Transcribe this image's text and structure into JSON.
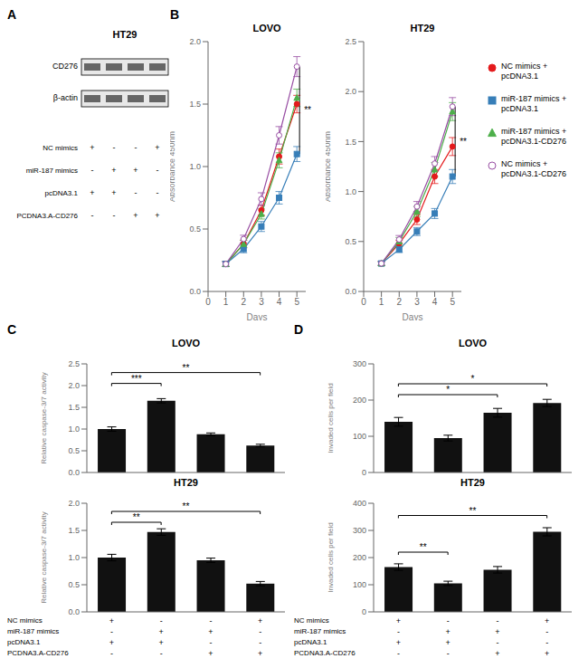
{
  "chart_data": [
    {
      "type": "blot",
      "panel_label": "A",
      "title": "HT29",
      "row_labels": [
        "CD276",
        "β-actin"
      ]
    },
    {
      "type": "line",
      "panel_label": "B",
      "title": "LOVO",
      "xlabel": "Days",
      "ylabel": "Absorbance 450nm",
      "x": [
        1,
        2,
        3,
        4,
        5
      ],
      "xlim": [
        0,
        5.5
      ],
      "xticks": [
        0,
        1,
        2,
        3,
        4,
        5
      ],
      "ylim": [
        0.0,
        2.0
      ],
      "yticks": [
        {
          "value": 0,
          "label": "0.0"
        },
        0.5,
        {
          "value": 1,
          "label": "1.0"
        },
        1.5,
        {
          "value": 2,
          "label": "2.0"
        }
      ],
      "series": [
        {
          "name": "NC mimics + pcDNA3.1",
          "color": "#e41a1c",
          "marker": "circle",
          "values": [
            0.22,
            0.38,
            0.65,
            1.08,
            1.5
          ],
          "errors": [
            0.02,
            0.03,
            0.04,
            0.06,
            0.07
          ]
        },
        {
          "name": "miR-187 mimics + pcDNA3.1",
          "color": "#377eb8",
          "marker": "square",
          "values": [
            0.22,
            0.34,
            0.52,
            0.75,
            1.1
          ],
          "errors": [
            0.02,
            0.03,
            0.04,
            0.05,
            0.06
          ]
        },
        {
          "name": "miR-187 mimics + pcDNA3.1-CD276",
          "color": "#4daf4a",
          "marker": "triangle",
          "values": [
            0.22,
            0.38,
            0.62,
            1.05,
            1.55
          ],
          "errors": [
            0.02,
            0.03,
            0.04,
            0.06,
            0.07
          ]
        },
        {
          "name": "NC mimics + pcDNA3.1-CD276",
          "color": "#984ea3",
          "marker": "circle-open",
          "values": [
            0.22,
            0.42,
            0.74,
            1.25,
            1.8
          ],
          "errors": [
            0.02,
            0.03,
            0.05,
            0.07,
            0.08
          ]
        }
      ],
      "annotations": [
        {
          "text": "**",
          "x": 5.15,
          "y1": 1.1,
          "y2": 1.8
        }
      ]
    },
    {
      "type": "line",
      "title": "HT29",
      "xlabel": "Days",
      "ylabel": "Absorbance 450nm",
      "legend": "right",
      "x": [
        1,
        2,
        3,
        4,
        5
      ],
      "xlim": [
        0,
        5.5
      ],
      "xticks": [
        0,
        1,
        2,
        3,
        4,
        5
      ],
      "ylim": [
        0.0,
        2.5
      ],
      "yticks": [
        {
          "value": 0,
          "label": "0.0"
        },
        0.5,
        {
          "value": 1,
          "label": "1.0"
        },
        1.5,
        {
          "value": 2,
          "label": "2.0"
        },
        2.5
      ],
      "series": [
        {
          "name": "NC mimics + pcDNA3.1",
          "color": "#e41a1c",
          "marker": "circle",
          "values": [
            0.28,
            0.48,
            0.72,
            1.15,
            1.45
          ],
          "errors": [
            0.02,
            0.03,
            0.05,
            0.07,
            0.09
          ]
        },
        {
          "name": "miR-187 mimics + pcDNA3.1",
          "color": "#377eb8",
          "marker": "square",
          "values": [
            0.28,
            0.42,
            0.6,
            0.78,
            1.15
          ],
          "errors": [
            0.02,
            0.03,
            0.04,
            0.05,
            0.07
          ]
        },
        {
          "name": "miR-187 mimics + pcDNA3.1-CD276",
          "color": "#4daf4a",
          "marker": "triangle",
          "values": [
            0.28,
            0.5,
            0.8,
            1.22,
            1.8
          ],
          "errors": [
            0.02,
            0.04,
            0.05,
            0.07,
            0.09
          ]
        },
        {
          "name": "NC mimics + pcDNA3.1-CD276",
          "color": "#984ea3",
          "marker": "circle-open",
          "values": [
            0.28,
            0.52,
            0.85,
            1.28,
            1.85
          ],
          "errors": [
            0.02,
            0.04,
            0.05,
            0.07,
            0.09
          ]
        }
      ],
      "annotations": [
        {
          "text": "**",
          "x": 5.15,
          "y1": 1.15,
          "y2": 1.85
        }
      ]
    },
    {
      "type": "bar",
      "panel_label": "C",
      "title": "LOVO",
      "ylabel": "Relative caspase-3/7 activity",
      "tick_labels": "y",
      "categories": [
        null,
        null,
        null,
        null
      ],
      "values": [
        1.0,
        1.65,
        0.88,
        0.62
      ],
      "errors": [
        0.05,
        0.05,
        0.03,
        0.03
      ],
      "color": "#111111",
      "ylim": [
        0.0,
        2.5
      ],
      "yticks": [
        {
          "value": 0,
          "label": "0.0"
        },
        0.5,
        {
          "value": 1,
          "label": "1.0"
        },
        1.5,
        {
          "value": 2,
          "label": "2.0"
        },
        2.5
      ],
      "annotations": [
        {
          "text": "***",
          "x1": 0,
          "x2": 1,
          "y": 2.05
        },
        {
          "text": "**",
          "x1": 0,
          "x2": 3,
          "y": 2.3
        }
      ]
    },
    {
      "type": "bar",
      "title": "HT29",
      "ylabel": "Relative caspase-3/7 activity",
      "tick_labels": "y",
      "categories": [
        null,
        null,
        null,
        null
      ],
      "values": [
        1.0,
        1.47,
        0.95,
        0.52
      ],
      "errors": [
        0.06,
        0.06,
        0.04,
        0.04
      ],
      "color": "#111111",
      "ylim": [
        0.0,
        2.0
      ],
      "yticks": [
        {
          "value": 0,
          "label": "0.0"
        },
        0.5,
        {
          "value": 1,
          "label": "1.0"
        },
        1.5,
        {
          "value": 2,
          "label": "2.0"
        }
      ],
      "annotations": [
        {
          "text": "**",
          "x1": 0,
          "x2": 1,
          "y": 1.65
        },
        {
          "text": "**",
          "x1": 0,
          "x2": 3,
          "y": 1.85
        }
      ]
    },
    {
      "type": "bar",
      "panel_label": "D",
      "title": "LOVO",
      "ylabel": "Invaded cells per field",
      "tick_labels": "y",
      "categories": [
        null,
        null,
        null,
        null
      ],
      "values": [
        140,
        95,
        165,
        192
      ],
      "errors": [
        12,
        8,
        12,
        10
      ],
      "color": "#111111",
      "ylim": [
        0,
        300
      ],
      "yticks": [
        0,
        100,
        200,
        300
      ],
      "annotations": [
        {
          "text": "*",
          "x1": 0,
          "x2": 2,
          "y": 215
        },
        {
          "text": "*",
          "x1": 0,
          "x2": 3,
          "y": 245
        }
      ]
    },
    {
      "type": "bar",
      "title": "HT29",
      "ylabel": "Invaded cells per field",
      "tick_labels": "y",
      "categories": [
        null,
        null,
        null,
        null
      ],
      "values": [
        165,
        105,
        155,
        295
      ],
      "errors": [
        12,
        8,
        12,
        15
      ],
      "color": "#111111",
      "ylim": [
        0,
        400
      ],
      "yticks": [
        0,
        100,
        200,
        300,
        400
      ],
      "annotations": [
        {
          "text": "**",
          "x1": 0,
          "x2": 1,
          "y": 220
        },
        {
          "text": "**",
          "x1": 0,
          "x2": 3,
          "y": 355
        }
      ]
    }
  ],
  "conditions": {
    "labels": [
      "NC mimics",
      "miR-187 mimics",
      "pcDNA3.1",
      "PCDNA3.A-CD276"
    ],
    "signs": [
      [
        "+",
        "-",
        "-",
        "+"
      ],
      [
        "-",
        "+",
        "+",
        "-"
      ],
      [
        "+",
        "+",
        "-",
        "-"
      ],
      [
        "-",
        "-",
        "+",
        "+"
      ]
    ]
  }
}
